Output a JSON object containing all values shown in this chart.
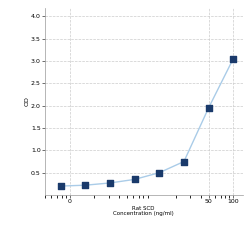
{
  "x": [
    0.78125,
    1.5625,
    3.125,
    6.25,
    12.5,
    25,
    50,
    100
  ],
  "y": [
    0.2,
    0.22,
    0.27,
    0.35,
    0.5,
    0.75,
    1.95,
    3.05
  ],
  "line_color": "#aacce8",
  "marker_color": "#1a3a6b",
  "marker_size": 4,
  "marker_style": "s",
  "xlabel_line1": "50",
  "xlabel_line2": "Rat SCD",
  "xlabel_line3": "Concentration (ng/ml)",
  "ylabel": "OD",
  "xlim": [
    0.5,
    130
  ],
  "ylim": [
    0,
    4.2
  ],
  "yticks": [
    0.5,
    1.0,
    1.5,
    2.0,
    2.5,
    3.0,
    3.5,
    4.0
  ],
  "grid_color": "#cccccc",
  "background_color": "#ffffff",
  "fig_background": "#ffffff"
}
